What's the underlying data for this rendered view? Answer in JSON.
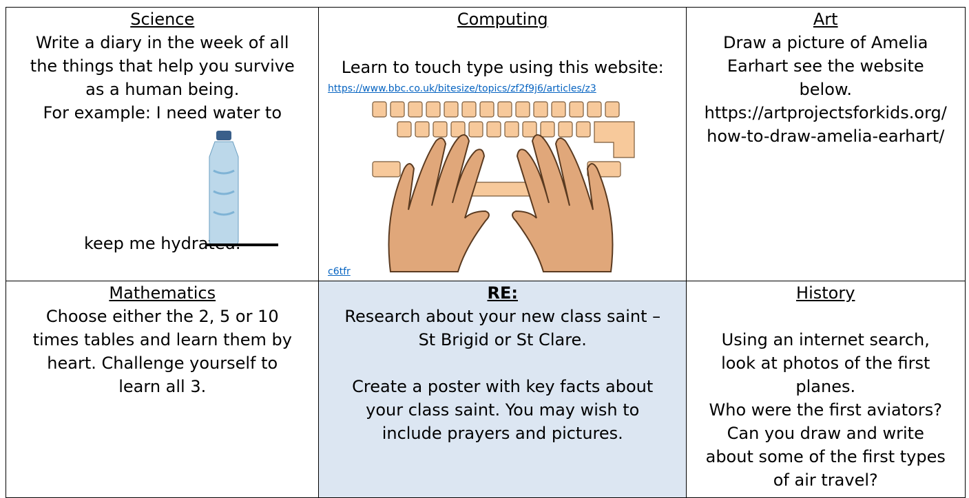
{
  "table": {
    "rows": [
      [
        {
          "title": "Science",
          "lines": [
            "Write a diary in the week of all",
            "the things that help you survive",
            "as a human being.",
            "For example: I need water to",
            "keep me hydrated."
          ]
        },
        {
          "title": "Computing",
          "lines": [
            "Learn to touch type using this website:"
          ],
          "link_parts": [
            "https://www.bbc.co.uk/bitesize/topics/zf2f9j6/articles/z3",
            "c6tfr"
          ]
        },
        {
          "title": "Art",
          "lines": [
            "Draw a picture of Amelia",
            "Earhart see the website",
            "below.",
            "https://artprojectsforkids.org/",
            "how-to-draw-amelia-earhart/"
          ]
        }
      ],
      [
        {
          "title": "Mathematics",
          "lines": [
            "Choose either the 2, 5 or 10",
            "times tables and learn them by",
            "heart.  Challenge yourself to",
            "learn all 3."
          ]
        },
        {
          "title": "RE:",
          "lines": [
            "Research about your new class saint –",
            "St Brigid or St Clare.",
            "Create a poster with key facts about",
            "your class saint. You may wish to",
            "include prayers and pictures."
          ]
        },
        {
          "title": "History",
          "lines": [
            "Using an internet search,",
            "look at photos of the first",
            "planes.",
            "Who were the first aviators?",
            "Can you draw and write",
            "about some of the first types",
            "of air travel?"
          ]
        }
      ]
    ]
  }
}
